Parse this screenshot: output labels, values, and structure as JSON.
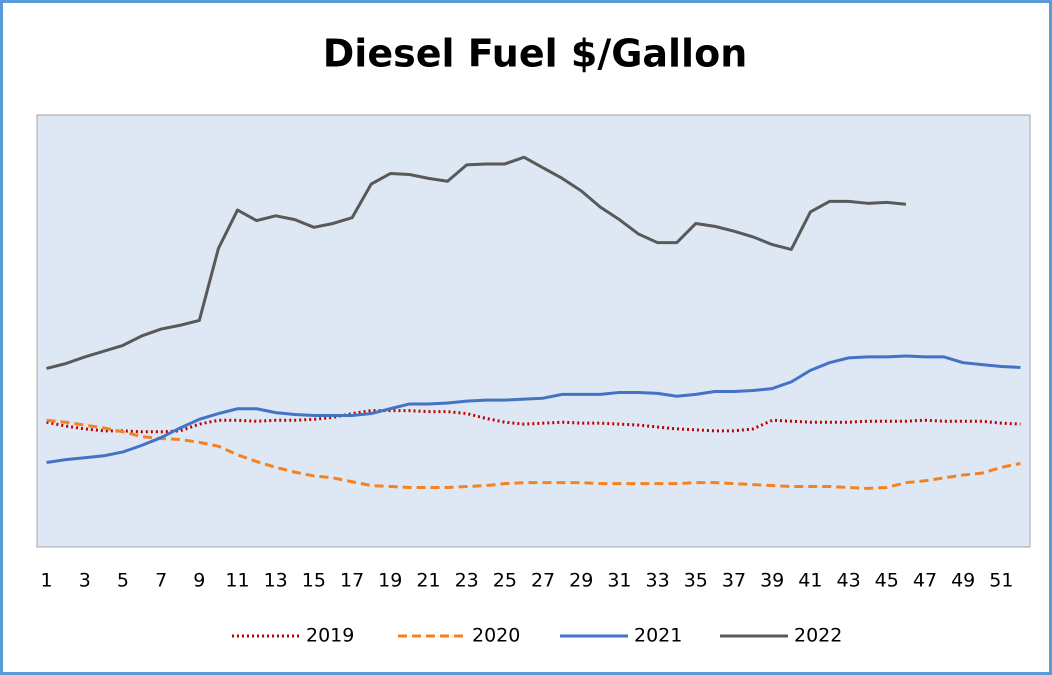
{
  "chart_data": {
    "type": "line",
    "title": "Diesel Fuel $/Gallon",
    "x": [
      1,
      2,
      3,
      4,
      5,
      6,
      7,
      8,
      9,
      10,
      11,
      12,
      13,
      14,
      15,
      16,
      17,
      18,
      19,
      20,
      21,
      22,
      23,
      24,
      25,
      26,
      27,
      28,
      29,
      30,
      31,
      32,
      33,
      34,
      35,
      36,
      37,
      38,
      39,
      40,
      41,
      42,
      43,
      44,
      45,
      46,
      47,
      48,
      49,
      50,
      51,
      52
    ],
    "xlim": [
      0.5,
      52.5
    ],
    "xticks": [
      1,
      3,
      5,
      7,
      9,
      11,
      13,
      15,
      17,
      19,
      21,
      23,
      25,
      27,
      29,
      31,
      33,
      35,
      37,
      39,
      41,
      43,
      45,
      47,
      49,
      51
    ],
    "ylim": [
      1.75,
      6.25
    ],
    "grid": false,
    "legend": "bottom",
    "series": [
      {
        "name": "2019",
        "color": "#c00000",
        "dash": "dotted",
        "values": [
          3.05,
          3.01,
          2.98,
          2.96,
          2.96,
          2.95,
          2.95,
          2.96,
          3.03,
          3.07,
          3.07,
          3.06,
          3.07,
          3.07,
          3.08,
          3.1,
          3.14,
          3.17,
          3.17,
          3.17,
          3.16,
          3.16,
          3.14,
          3.09,
          3.05,
          3.03,
          3.04,
          3.05,
          3.04,
          3.04,
          3.03,
          3.02,
          3.0,
          2.98,
          2.97,
          2.96,
          2.96,
          2.98,
          3.07,
          3.06,
          3.05,
          3.05,
          3.05,
          3.06,
          3.06,
          3.06,
          3.07,
          3.06,
          3.06,
          3.06,
          3.04,
          3.03
        ]
      },
      {
        "name": "2020",
        "color": "#f58220",
        "dash": "dashed",
        "values": [
          3.07,
          3.05,
          3.02,
          2.99,
          2.95,
          2.9,
          2.88,
          2.87,
          2.84,
          2.8,
          2.71,
          2.64,
          2.58,
          2.53,
          2.49,
          2.47,
          2.43,
          2.39,
          2.38,
          2.37,
          2.37,
          2.37,
          2.38,
          2.39,
          2.41,
          2.42,
          2.42,
          2.42,
          2.42,
          2.41,
          2.41,
          2.41,
          2.41,
          2.41,
          2.42,
          2.42,
          2.41,
          2.4,
          2.39,
          2.38,
          2.38,
          2.38,
          2.37,
          2.36,
          2.37,
          2.42,
          2.44,
          2.47,
          2.5,
          2.52,
          2.58,
          2.62
        ]
      },
      {
        "name": "2021",
        "color": "#4472c4",
        "dash": "solid",
        "values": [
          2.63,
          2.66,
          2.68,
          2.7,
          2.74,
          2.81,
          2.89,
          2.99,
          3.08,
          3.14,
          3.19,
          3.19,
          3.15,
          3.13,
          3.12,
          3.12,
          3.12,
          3.14,
          3.19,
          3.24,
          3.24,
          3.25,
          3.27,
          3.28,
          3.28,
          3.29,
          3.3,
          3.34,
          3.34,
          3.34,
          3.36,
          3.36,
          3.35,
          3.32,
          3.34,
          3.37,
          3.37,
          3.38,
          3.4,
          3.47,
          3.59,
          3.67,
          3.72,
          3.73,
          3.73,
          3.74,
          3.73,
          3.73,
          3.67,
          3.65,
          3.63,
          3.62
        ]
      },
      {
        "name": "2022",
        "color": "#595959",
        "dash": "solid",
        "values": [
          3.61,
          3.66,
          3.73,
          3.79,
          3.85,
          3.95,
          4.02,
          4.06,
          4.11,
          4.86,
          5.26,
          5.15,
          5.2,
          5.16,
          5.08,
          5.12,
          5.18,
          5.53,
          5.64,
          5.63,
          5.59,
          5.56,
          5.73,
          5.74,
          5.74,
          5.81,
          5.7,
          5.59,
          5.46,
          5.29,
          5.16,
          5.01,
          4.92,
          4.92,
          5.12,
          5.09,
          5.04,
          4.98,
          4.9,
          4.85,
          5.24,
          5.35,
          5.35,
          5.33,
          5.34,
          5.32,
          null,
          null,
          null,
          null,
          null,
          null
        ]
      }
    ]
  }
}
